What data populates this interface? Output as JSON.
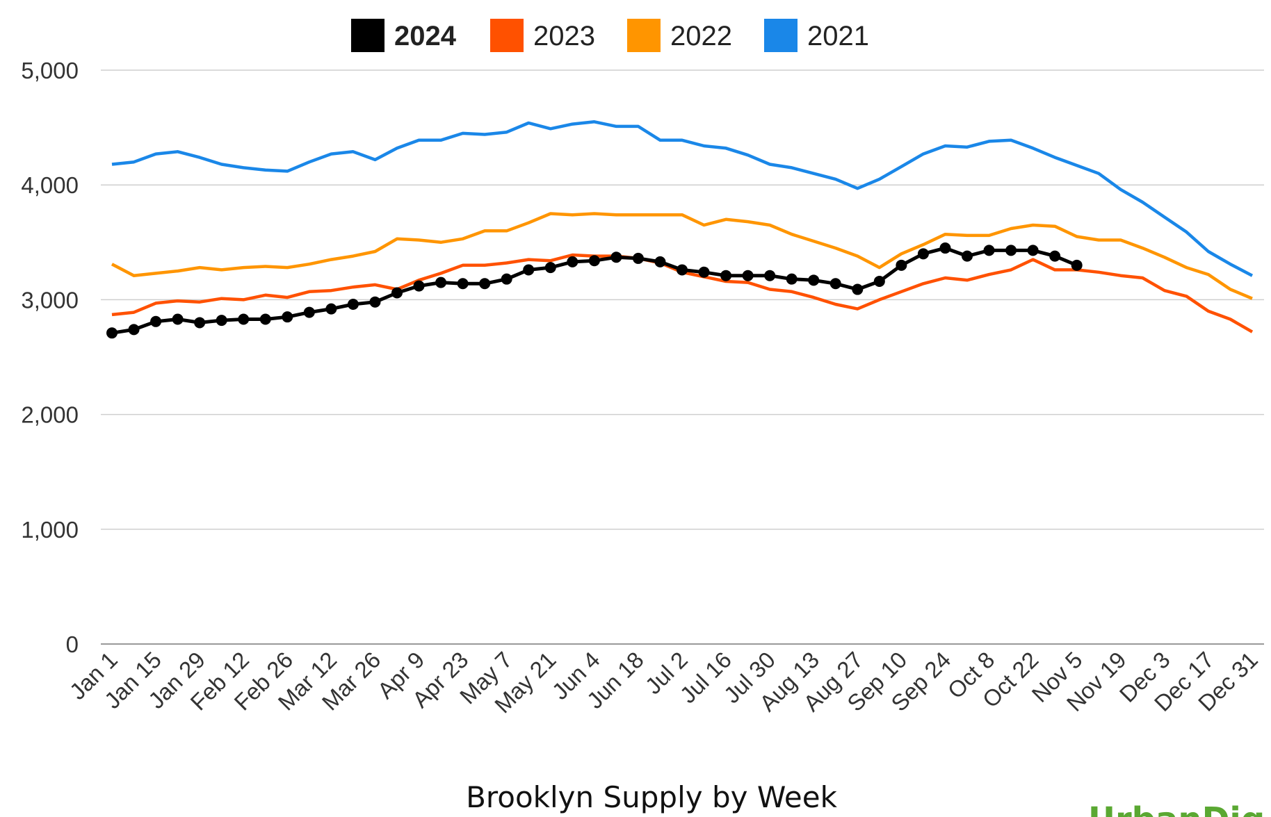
{
  "chart_data": {
    "type": "line",
    "title": "Brooklyn Supply by Week",
    "xlabel": "",
    "ylabel": "",
    "ylim": [
      0,
      5000
    ],
    "yticks": [
      0,
      1000,
      2000,
      3000,
      4000,
      5000
    ],
    "ytick_labels": [
      "0",
      "1,000",
      "2,000",
      "3,000",
      "4,000",
      "5,000"
    ],
    "grid": true,
    "legend_placement": "top-center",
    "x_tick_labels": [
      "Jan 1",
      "",
      "Jan 15",
      "",
      "Jan 29",
      "",
      "Feb 12",
      "",
      "Feb 26",
      "",
      "Mar 12",
      "",
      "Mar 26",
      "",
      "Apr 9",
      "",
      "Apr 23",
      "",
      "May 7",
      "",
      "May 21",
      "",
      "Jun 4",
      "",
      "Jun 18",
      "",
      "Jul 2",
      "",
      "Jul 16",
      "",
      "Jul 30",
      "",
      "Aug 13",
      "",
      "Aug 27",
      "",
      "Sep 10",
      "",
      "Sep 24",
      "",
      "Oct 8",
      "",
      "Oct 22",
      "",
      "Nov 5",
      "",
      "Nov 19",
      "",
      "Dec 3",
      "",
      "Dec 17",
      "",
      "Dec 31"
    ],
    "series": [
      {
        "name": "2024",
        "color": "#000000",
        "markers": true,
        "values": [
          2710,
          2740,
          2810,
          2830,
          2800,
          2820,
          2830,
          2830,
          2850,
          2890,
          2920,
          2960,
          2980,
          3060,
          3120,
          3150,
          3140,
          3140,
          3180,
          3260,
          3280,
          3330,
          3340,
          3370,
          3360,
          3330,
          3260,
          3240,
          3210,
          3210,
          3210,
          3180,
          3170,
          3140,
          3090,
          3160,
          3300,
          3400,
          3450,
          3380,
          3430,
          3430,
          3430,
          3380,
          3300
        ]
      },
      {
        "name": "2023",
        "color": "#ff5100",
        "markers": false,
        "values": [
          2870,
          2890,
          2970,
          2990,
          2980,
          3010,
          3000,
          3040,
          3020,
          3070,
          3080,
          3110,
          3130,
          3090,
          3170,
          3230,
          3300,
          3300,
          3320,
          3350,
          3340,
          3390,
          3380,
          3380,
          3360,
          3320,
          3240,
          3200,
          3160,
          3150,
          3090,
          3070,
          3020,
          2960,
          2920,
          3000,
          3070,
          3140,
          3190,
          3170,
          3220,
          3260,
          3350,
          3260,
          3260,
          3240,
          3210,
          3190,
          3080,
          3030,
          2900,
          2830,
          2720
        ]
      },
      {
        "name": "2022",
        "color": "#ff9500",
        "markers": false,
        "values": [
          3310,
          3210,
          3230,
          3250,
          3280,
          3260,
          3280,
          3290,
          3280,
          3310,
          3350,
          3380,
          3420,
          3530,
          3520,
          3500,
          3530,
          3600,
          3600,
          3670,
          3750,
          3740,
          3750,
          3740,
          3740,
          3740,
          3740,
          3650,
          3700,
          3680,
          3650,
          3570,
          3510,
          3450,
          3380,
          3280,
          3400,
          3480,
          3570,
          3560,
          3560,
          3620,
          3650,
          3640,
          3550,
          3520,
          3520,
          3450,
          3370,
          3280,
          3220,
          3090,
          3010
        ]
      },
      {
        "name": "2021",
        "color": "#1a87e8",
        "markers": false,
        "values": [
          4180,
          4200,
          4270,
          4290,
          4240,
          4180,
          4150,
          4130,
          4120,
          4200,
          4270,
          4290,
          4220,
          4320,
          4390,
          4390,
          4450,
          4440,
          4460,
          4540,
          4490,
          4530,
          4550,
          4510,
          4510,
          4390,
          4390,
          4340,
          4320,
          4260,
          4180,
          4150,
          4100,
          4050,
          3970,
          4050,
          4160,
          4270,
          4340,
          4330,
          4380,
          4390,
          4320,
          4240,
          4170,
          4100,
          3960,
          3850,
          3720,
          3590,
          3420,
          3310,
          3210
        ]
      }
    ]
  },
  "logo": {
    "text": "UrbanDig"
  }
}
